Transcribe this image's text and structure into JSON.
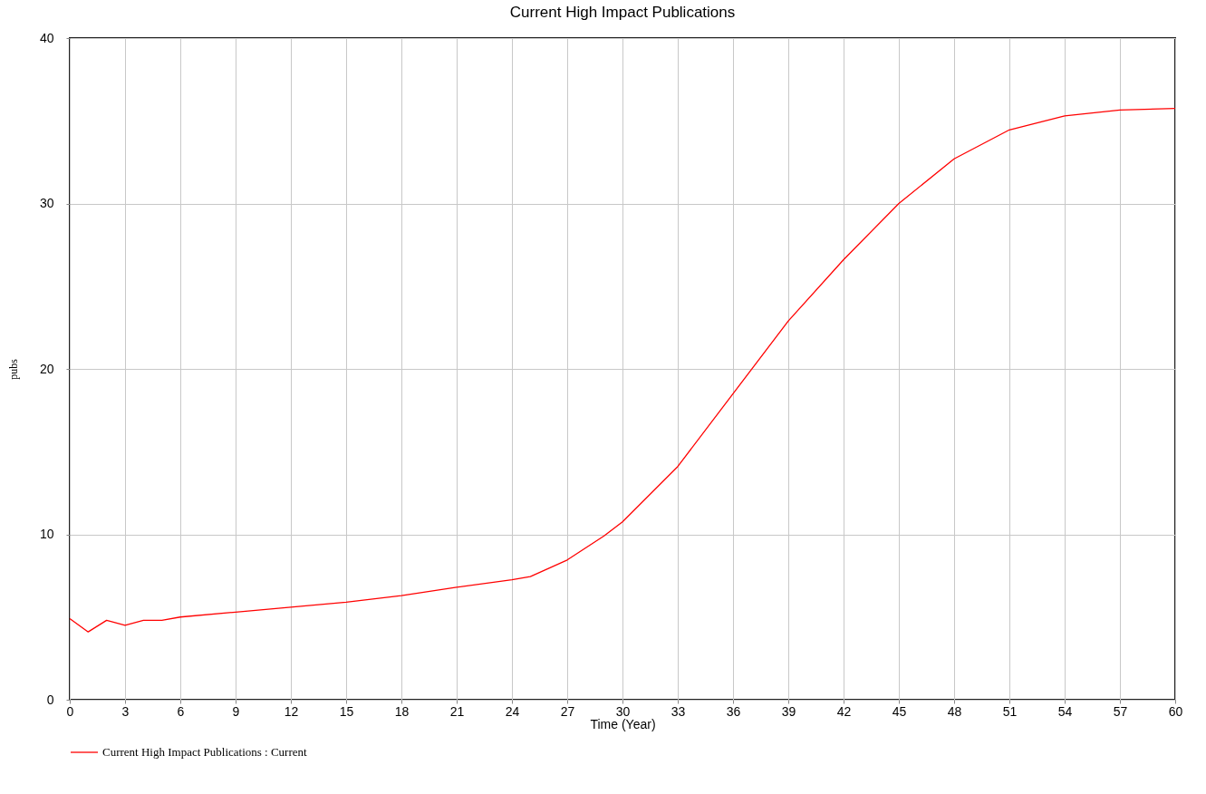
{
  "chart_data": {
    "type": "line",
    "title": "Current High Impact Publications",
    "xlabel": "Time (Year)",
    "ylabel": "pubs",
    "x": [
      0,
      1,
      2,
      3,
      4,
      5,
      6,
      9,
      12,
      15,
      18,
      21,
      24,
      25,
      27,
      29,
      30,
      33,
      36,
      39,
      42,
      45,
      48,
      51,
      54,
      57,
      60
    ],
    "series": [
      {
        "name": "Current High Impact Publications : Current",
        "color": "#ff0000",
        "values": [
          4.9,
          4.1,
          4.8,
          4.5,
          4.8,
          4.8,
          5.0,
          5.3,
          5.6,
          5.9,
          6.3,
          6.8,
          7.25,
          7.45,
          8.45,
          9.9,
          10.75,
          14.1,
          18.5,
          22.9,
          26.6,
          30.0,
          32.7,
          34.45,
          35.3,
          35.65,
          35.75
        ]
      }
    ],
    "xlim": [
      0,
      60
    ],
    "xticks": [
      0,
      3,
      6,
      9,
      12,
      15,
      18,
      21,
      24,
      27,
      30,
      33,
      36,
      39,
      42,
      45,
      48,
      51,
      54,
      57,
      60
    ],
    "ylim": [
      0,
      40
    ],
    "yticks": [
      0,
      10,
      20,
      30,
      40
    ],
    "grid": true,
    "legend": "bottom left",
    "line_style": "solid"
  }
}
